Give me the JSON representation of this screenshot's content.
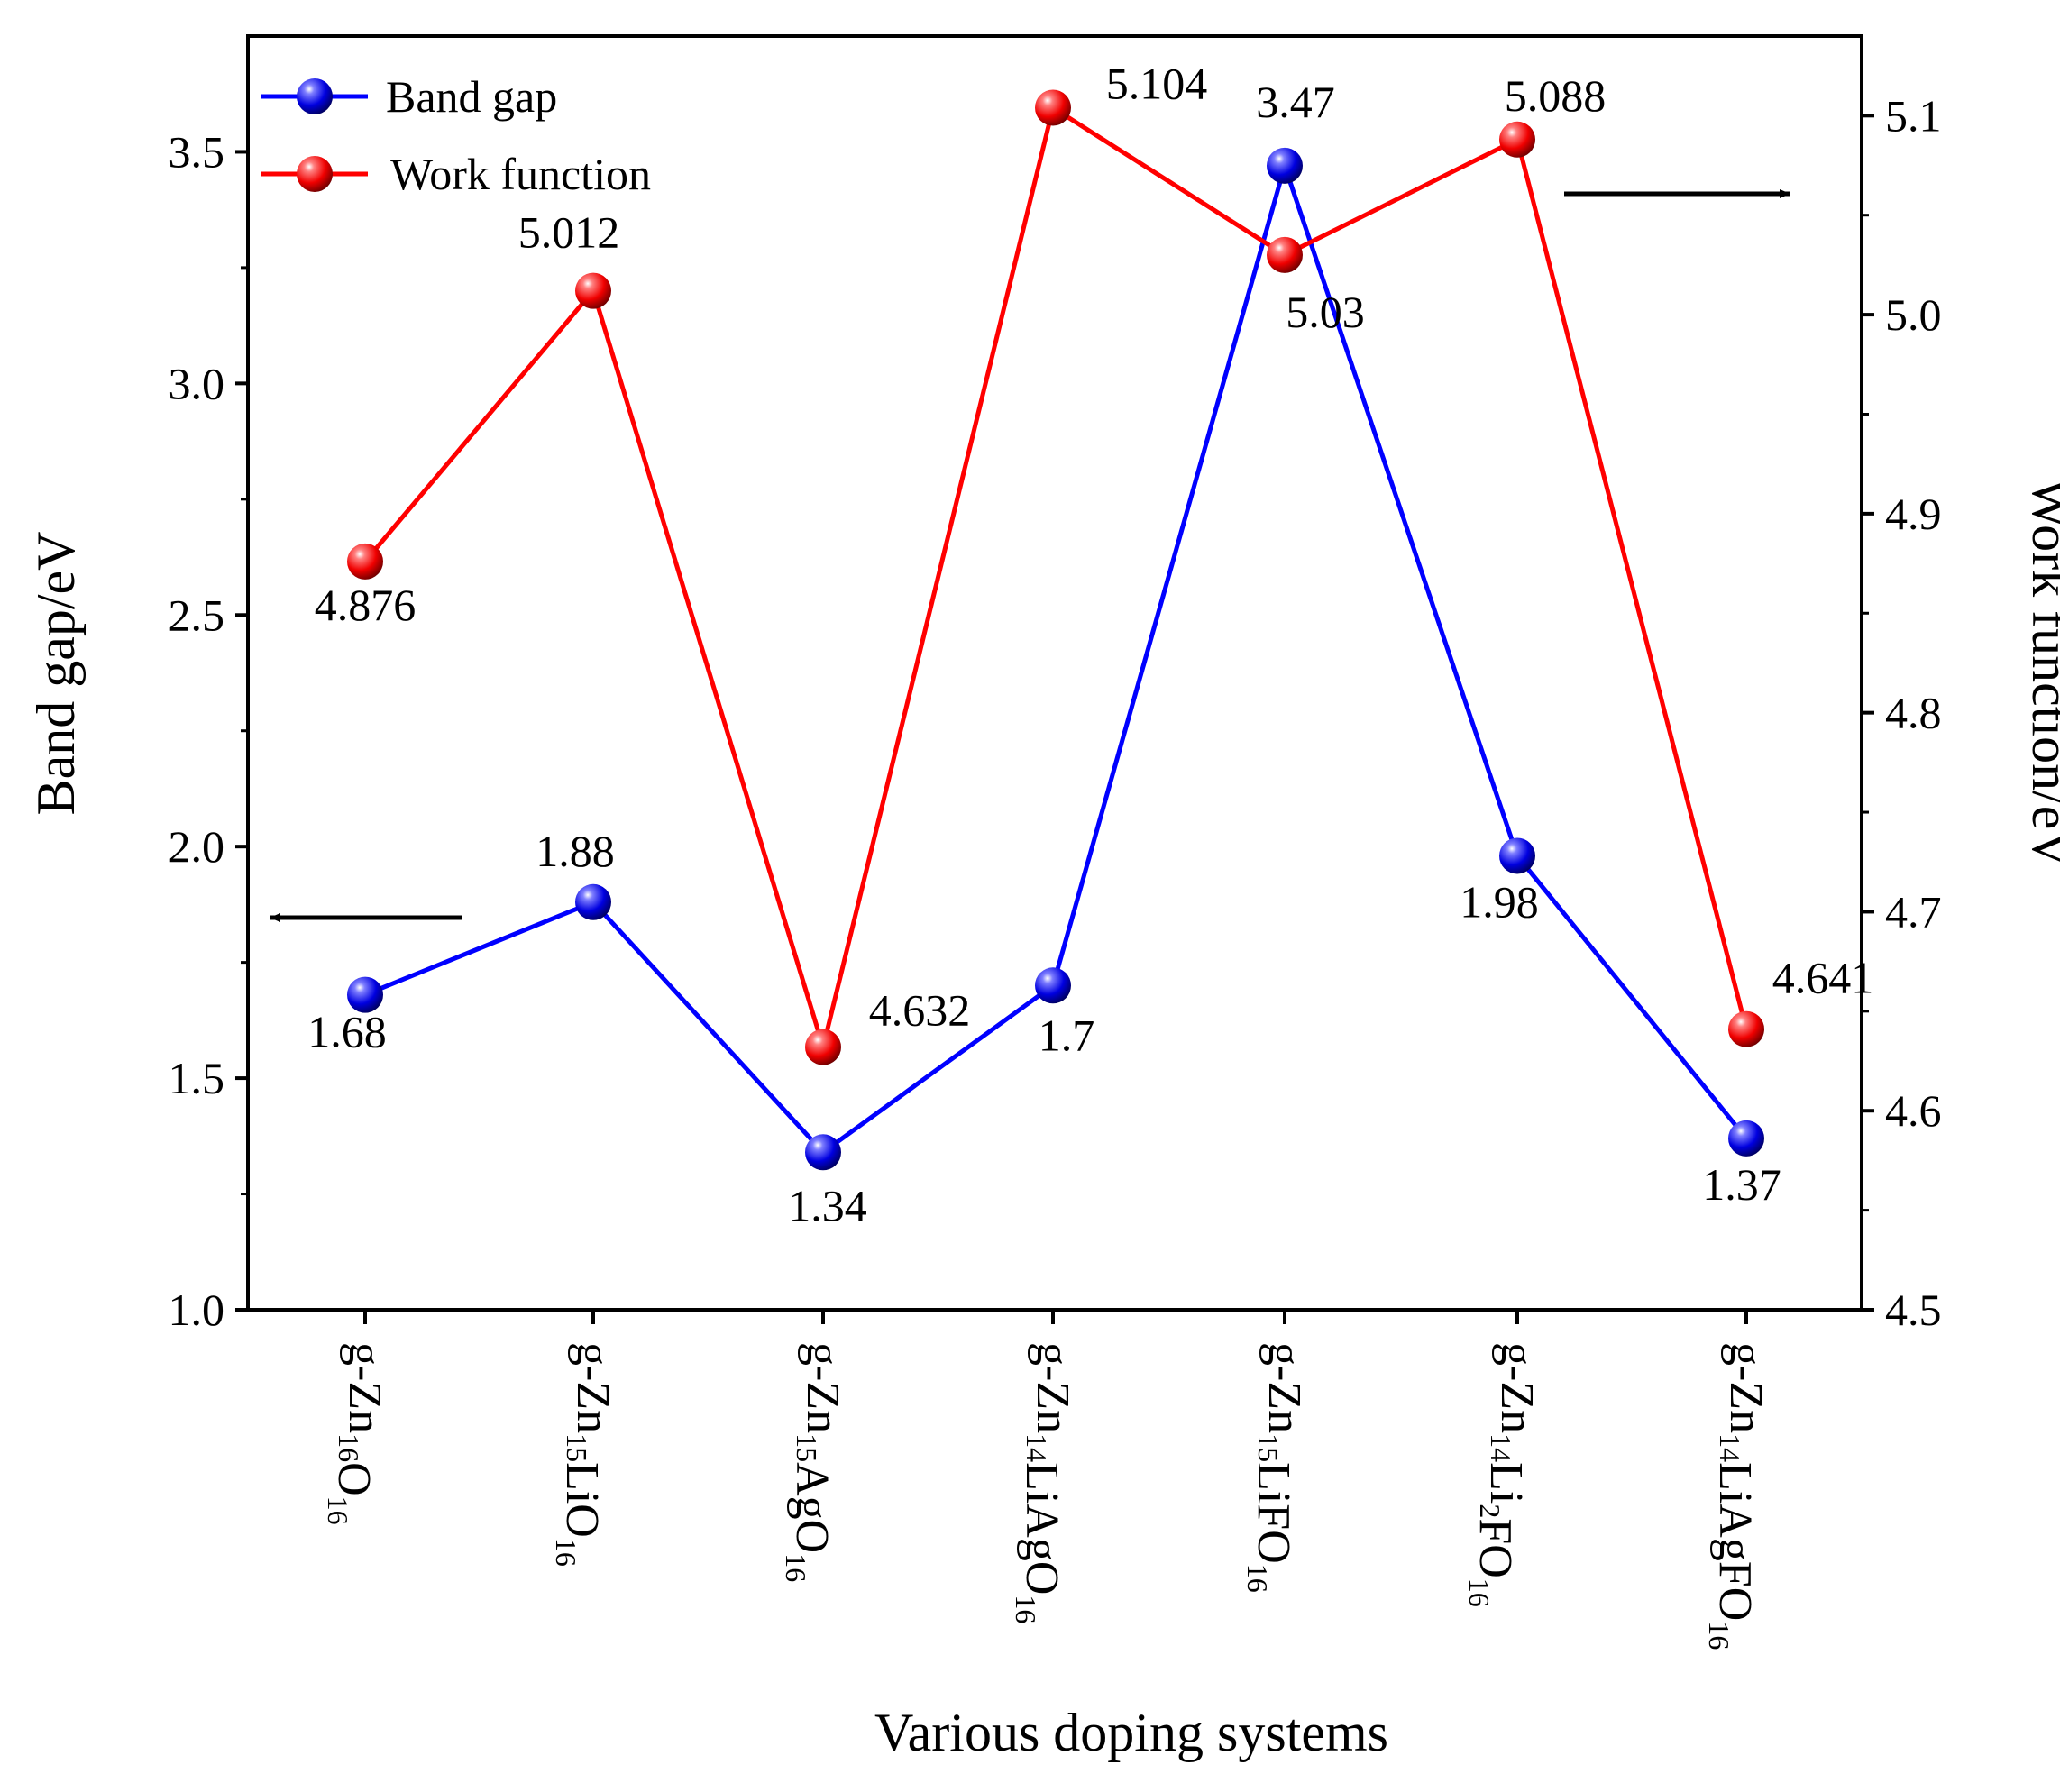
{
  "chart_data": {
    "type": "line",
    "xlabel": "Various doping systems",
    "categories": [
      [
        {
          "t": "g-Zn"
        },
        {
          "t": "16",
          "s": 1
        },
        {
          "t": "O"
        },
        {
          "t": "16",
          "s": 1
        }
      ],
      [
        {
          "t": "g-Zn"
        },
        {
          "t": "15",
          "s": 1
        },
        {
          "t": "LiO"
        },
        {
          "t": "16",
          "s": 1
        }
      ],
      [
        {
          "t": "g-Zn"
        },
        {
          "t": "15",
          "s": 1
        },
        {
          "t": "AgO"
        },
        {
          "t": "16",
          "s": 1
        }
      ],
      [
        {
          "t": "g-Zn"
        },
        {
          "t": "14",
          "s": 1
        },
        {
          "t": "LiAgO"
        },
        {
          "t": "16",
          "s": 1
        }
      ],
      [
        {
          "t": "g-Zn"
        },
        {
          "t": "15",
          "s": 1
        },
        {
          "t": "LiFO"
        },
        {
          "t": "16",
          "s": 1
        }
      ],
      [
        {
          "t": "g-Zn"
        },
        {
          "t": "14",
          "s": 1
        },
        {
          "t": "Li"
        },
        {
          "t": "2",
          "s": 1
        },
        {
          "t": "FO"
        },
        {
          "t": "16",
          "s": 1
        }
      ],
      [
        {
          "t": "g-Zn"
        },
        {
          "t": "14",
          "s": 1
        },
        {
          "t": "LiAgFO"
        },
        {
          "t": "16",
          "s": 1
        }
      ]
    ],
    "left_axis": {
      "label": "Band gap/eV",
      "ylim": [
        1.0,
        3.75
      ],
      "ticks": [
        1.0,
        1.5,
        2.0,
        2.5,
        3.0,
        3.5
      ],
      "tick_labels": [
        "1.0",
        "1.5",
        "2.0",
        "2.5",
        "3.0",
        "3.5"
      ]
    },
    "right_axis": {
      "label": "Work function/eV",
      "ylim": [
        4.5,
        5.14
      ],
      "ticks": [
        4.5,
        4.6,
        4.7,
        4.8,
        4.9,
        5.0,
        5.1
      ],
      "tick_labels": [
        "4.5",
        "4.6",
        "4.7",
        "4.8",
        "4.9",
        "5.0",
        "5.1"
      ]
    },
    "series": [
      {
        "name": "Band gap",
        "axis": "left",
        "color": "#0000ff",
        "values": [
          1.68,
          1.88,
          1.34,
          1.7,
          3.47,
          1.98,
          1.37
        ],
        "labels": [
          "1.68",
          "1.88",
          "1.34",
          "1.7",
          "3.47",
          "1.98",
          "1.37"
        ]
      },
      {
        "name": "Work function",
        "axis": "right",
        "color": "#ff0000",
        "values": [
          4.876,
          5.012,
          4.632,
          5.104,
          5.03,
          5.088,
          4.641
        ],
        "labels": [
          "4.876",
          "5.012",
          "4.632",
          "5.104",
          "5.03",
          "5.088",
          "4.641"
        ]
      }
    ],
    "legend": "top-left"
  }
}
